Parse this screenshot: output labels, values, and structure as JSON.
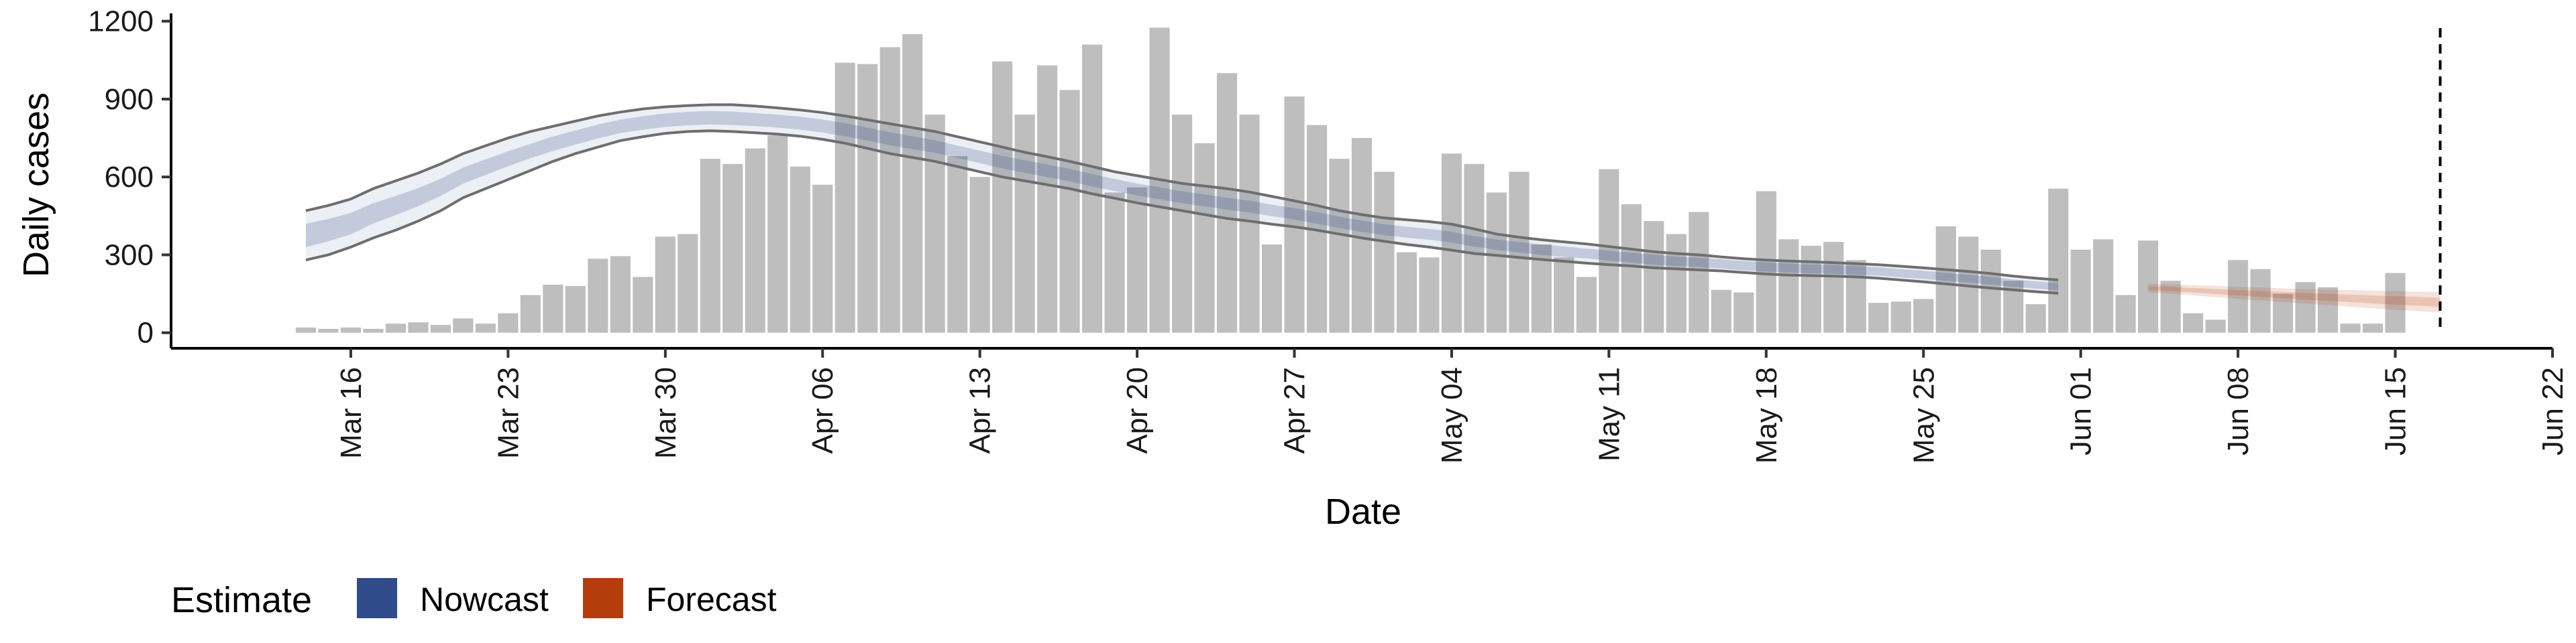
{
  "chart_data": {
    "type": "bar",
    "xlabel": "Date",
    "ylabel": "Daily cases",
    "ylim": [
      -60,
      1230
    ],
    "yticks": [
      0,
      300,
      600,
      900,
      1200
    ],
    "x_range": [
      "2020-03-08",
      "2020-06-22"
    ],
    "x_ticks": [
      {
        "date": "2020-03-16",
        "label": "Mar 16"
      },
      {
        "date": "2020-03-23",
        "label": "Mar 23"
      },
      {
        "date": "2020-03-30",
        "label": "Mar 30"
      },
      {
        "date": "2020-04-06",
        "label": "Apr 06"
      },
      {
        "date": "2020-04-13",
        "label": "Apr 13"
      },
      {
        "date": "2020-04-20",
        "label": "Apr 20"
      },
      {
        "date": "2020-04-27",
        "label": "Apr 27"
      },
      {
        "date": "2020-05-04",
        "label": "May 04"
      },
      {
        "date": "2020-05-11",
        "label": "May 11"
      },
      {
        "date": "2020-05-18",
        "label": "May 18"
      },
      {
        "date": "2020-05-25",
        "label": "May 25"
      },
      {
        "date": "2020-06-01",
        "label": "Jun 01"
      },
      {
        "date": "2020-06-08",
        "label": "Jun 08"
      },
      {
        "date": "2020-06-15",
        "label": "Jun 15"
      },
      {
        "date": "2020-06-22",
        "label": "Jun 22"
      }
    ],
    "bars": {
      "start_date": "2020-03-14",
      "color": "#bebebe",
      "values": [
        20,
        15,
        20,
        15,
        35,
        40,
        30,
        55,
        35,
        75,
        145,
        185,
        180,
        285,
        295,
        215,
        370,
        380,
        670,
        650,
        710,
        760,
        640,
        570,
        1040,
        1035,
        1100,
        1150,
        840,
        680,
        600,
        1045,
        840,
        1030,
        935,
        1110,
        540,
        560,
        1175,
        840,
        730,
        1000,
        840,
        340,
        910,
        800,
        670,
        750,
        620,
        310,
        290,
        690,
        650,
        540,
        620,
        340,
        290,
        215,
        630,
        495,
        430,
        380,
        465,
        165,
        155,
        545,
        360,
        335,
        350,
        280,
        115,
        120,
        130,
        410,
        370,
        320,
        200,
        110,
        555,
        320,
        360,
        145,
        355,
        200,
        75,
        50,
        280,
        245,
        150,
        195,
        175,
        35,
        35,
        230
      ]
    },
    "estimate_bounds": {
      "color": "#6e6e6e",
      "start_date": "2020-03-14",
      "upper": [
        470,
        490,
        515,
        555,
        585,
        615,
        650,
        690,
        720,
        750,
        775,
        795,
        815,
        835,
        850,
        862,
        870,
        875,
        878,
        878,
        873,
        866,
        858,
        848,
        835,
        820,
        805,
        790,
        775,
        755,
        735,
        715,
        695,
        678,
        660,
        640,
        620,
        605,
        590,
        575,
        565,
        555,
        542,
        525,
        508,
        490,
        470,
        455,
        442,
        435,
        428,
        418,
        400,
        380,
        368,
        358,
        350,
        342,
        332,
        322,
        312,
        305,
        300,
        292,
        285,
        280,
        276,
        273,
        270,
        266,
        262,
        256,
        250,
        243,
        236,
        228,
        218,
        210,
        203
      ],
      "lower": [
        280,
        300,
        330,
        365,
        395,
        430,
        470,
        520,
        555,
        590,
        625,
        660,
        690,
        715,
        740,
        755,
        768,
        775,
        778,
        775,
        770,
        765,
        757,
        745,
        730,
        710,
        690,
        675,
        660,
        640,
        620,
        600,
        585,
        570,
        555,
        535,
        518,
        500,
        485,
        470,
        455,
        440,
        430,
        418,
        408,
        395,
        380,
        365,
        352,
        340,
        330,
        318,
        305,
        298,
        290,
        282,
        275,
        268,
        262,
        257,
        250,
        246,
        242,
        238,
        232,
        226,
        222,
        220,
        218,
        215,
        210,
        203,
        196,
        188,
        180,
        172,
        165,
        158,
        152
      ]
    },
    "nowcast": {
      "color": "#2f4b8a",
      "start_date": "2020-03-14",
      "center": [
        375,
        395,
        420,
        460,
        490,
        522,
        560,
        605,
        638,
        670,
        700,
        728,
        752,
        775,
        795,
        808,
        819,
        825,
        828,
        826,
        821,
        815,
        807,
        796,
        782,
        765,
        747,
        732,
        717,
        697,
        677,
        657,
        640,
        624,
        607,
        587,
        569,
        552,
        537,
        522,
        510,
        497,
        486,
        471,
        458,
        442,
        425,
        410,
        397,
        387,
        379,
        368,
        352,
        339,
        329,
        320,
        312,
        305,
        297,
        289,
        281,
        275,
        271,
        265,
        258,
        253,
        249,
        246,
        244,
        240,
        236,
        229,
        223,
        215,
        208,
        200,
        191,
        184,
        177
      ],
      "inner_halfwidth": [
        45,
        43,
        41,
        39,
        37,
        35,
        33,
        31,
        30,
        29,
        28,
        28,
        27,
        27,
        26,
        26,
        26,
        26,
        26,
        26,
        25,
        25,
        25,
        25,
        25,
        25,
        25,
        25,
        24,
        24,
        24,
        24,
        24,
        24,
        24,
        24,
        23,
        23,
        23,
        23,
        23,
        23,
        23,
        22,
        22,
        22,
        22,
        22,
        21,
        21,
        21,
        21,
        20,
        20,
        20,
        20,
        20,
        19,
        19,
        19,
        19,
        18,
        18,
        18,
        18,
        18,
        17,
        17,
        17,
        17,
        16,
        16,
        16,
        15,
        15,
        15,
        14,
        14,
        14
      ]
    },
    "forecast": {
      "color": "#b53d0c",
      "start_date": "2020-06-04",
      "center": [
        172,
        168,
        164,
        159,
        154,
        149,
        145,
        140,
        136,
        132,
        128,
        124,
        121,
        117
      ],
      "upper": [
        188,
        186,
        183,
        180,
        177,
        174,
        171,
        168,
        166,
        164,
        162,
        160,
        158,
        156
      ],
      "lower": [
        156,
        150,
        144,
        137,
        130,
        124,
        118,
        112,
        106,
        100,
        94,
        88,
        84,
        78
      ]
    },
    "vline_date": "2020-06-17",
    "legend": {
      "title": "Estimate",
      "position": "bottom-left",
      "items": [
        {
          "label": "Nowcast",
          "color": "#2f4b8a"
        },
        {
          "label": "Forecast",
          "color": "#b53d0c"
        }
      ]
    },
    "grid": false
  }
}
